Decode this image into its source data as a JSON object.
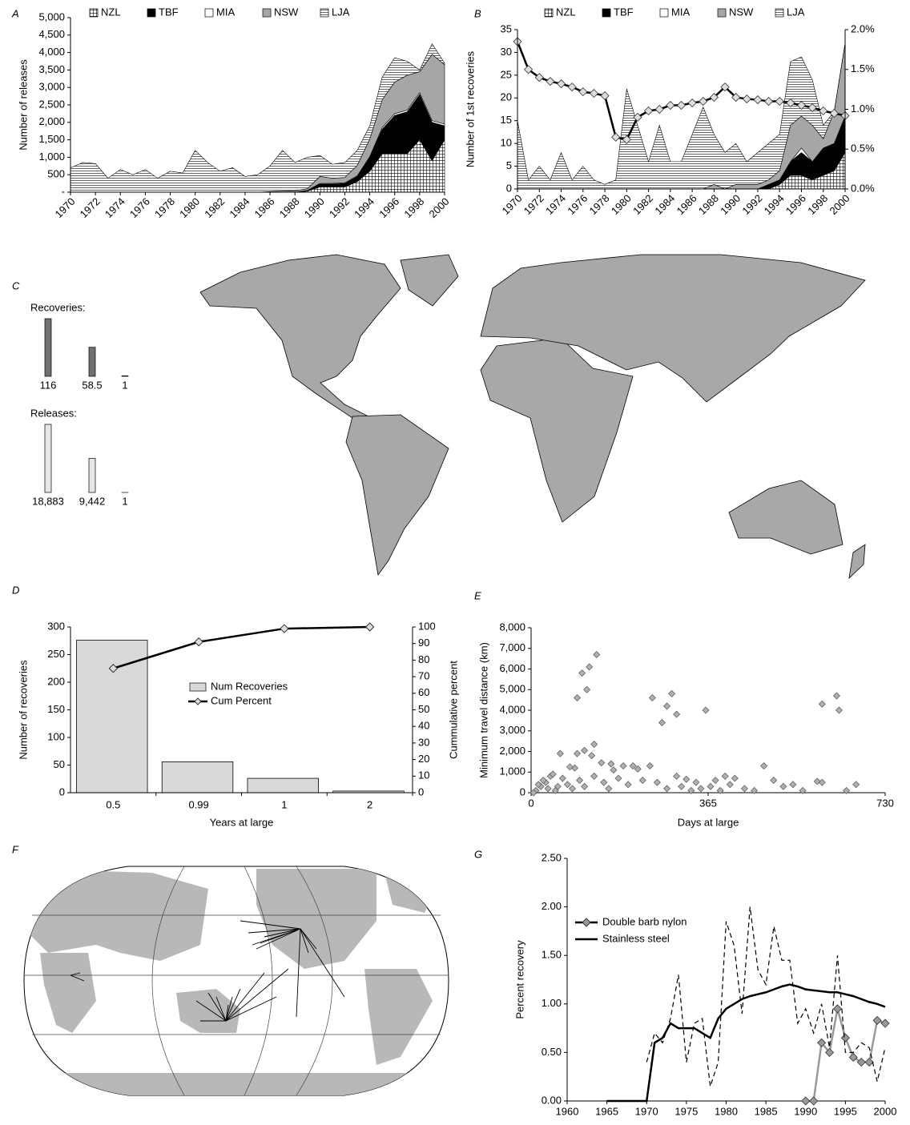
{
  "chart_data": [
    {
      "type": "stacked-area",
      "label": "A",
      "ylabel": "Number of releases",
      "x": [
        1970,
        1971,
        1972,
        1973,
        1974,
        1975,
        1976,
        1977,
        1978,
        1979,
        1980,
        1981,
        1982,
        1983,
        1984,
        1985,
        1986,
        1987,
        1988,
        1989,
        1990,
        1991,
        1992,
        1993,
        1994,
        1995,
        1996,
        1997,
        1998,
        1999,
        2000
      ],
      "xlim": [
        1970,
        2000
      ],
      "xticks": [
        1970,
        1972,
        1974,
        1976,
        1978,
        1980,
        1982,
        1984,
        1986,
        1988,
        1990,
        1992,
        1994,
        1996,
        1998,
        2000
      ],
      "ylim": [
        0,
        5000
      ],
      "yticks": [
        {
          "value": 0,
          "label": "-"
        },
        500,
        {
          "value": 1000,
          "label": "1,000"
        },
        {
          "value": 1500,
          "label": "1,500"
        },
        {
          "value": 2000,
          "label": "2,000"
        },
        {
          "value": 2500,
          "label": "2,500"
        },
        {
          "value": 3000,
          "label": "3,000"
        },
        {
          "value": 3500,
          "label": "3,500"
        },
        {
          "value": 4000,
          "label": "4,000"
        },
        {
          "value": 4500,
          "label": "4,500"
        },
        {
          "value": 5000,
          "label": "5,000"
        }
      ],
      "series": [
        {
          "name": "NZL",
          "color": "#ffffff",
          "pattern": "grid",
          "values": [
            0,
            0,
            0,
            0,
            0,
            0,
            0,
            0,
            0,
            0,
            0,
            0,
            0,
            0,
            0,
            0,
            0,
            0,
            0,
            30,
            150,
            150,
            150,
            300,
            600,
            1100,
            1100,
            1100,
            1500,
            900,
            1500
          ]
        },
        {
          "name": "TBF",
          "color": "#000000",
          "values": [
            0,
            0,
            0,
            0,
            0,
            0,
            0,
            0,
            0,
            0,
            0,
            0,
            0,
            0,
            0,
            0,
            0,
            0,
            0,
            20,
            80,
            80,
            100,
            150,
            400,
            700,
            1100,
            1200,
            1300,
            1100,
            400
          ]
        },
        {
          "name": "MIA",
          "color": "#ffffff",
          "values": [
            0,
            0,
            0,
            0,
            0,
            0,
            0,
            0,
            0,
            0,
            0,
            0,
            0,
            0,
            0,
            0,
            0,
            0,
            0,
            0,
            20,
            20,
            20,
            20,
            20,
            50,
            50,
            50,
            50,
            50,
            50
          ]
        },
        {
          "name": "NSW",
          "color": "#a6a6a6",
          "values": [
            0,
            0,
            0,
            0,
            0,
            0,
            0,
            0,
            0,
            0,
            0,
            0,
            0,
            0,
            0,
            0,
            20,
            30,
            40,
            50,
            200,
            150,
            150,
            300,
            500,
            800,
            900,
            1000,
            600,
            1900,
            1700
          ]
        },
        {
          "name": "LJA",
          "color": "#ffffff",
          "pattern": "hlines",
          "values": [
            700,
            850,
            820,
            400,
            650,
            500,
            650,
            400,
            600,
            550,
            1200,
            850,
            600,
            700,
            450,
            500,
            730,
            1170,
            810,
            900,
            600,
            400,
            430,
            430,
            380,
            650,
            700,
            400,
            50,
            300,
            50
          ]
        }
      ]
    },
    {
      "type": "stacked-area",
      "label": "B",
      "ylabel": "Number of 1st recoveries",
      "x": [
        1970,
        1971,
        1972,
        1973,
        1974,
        1975,
        1976,
        1977,
        1978,
        1979,
        1980,
        1981,
        1982,
        1983,
        1984,
        1985,
        1986,
        1987,
        1988,
        1989,
        1990,
        1991,
        1992,
        1993,
        1994,
        1995,
        1996,
        1997,
        1998,
        1999,
        2000
      ],
      "xlim": [
        1970,
        2000
      ],
      "xticks": [
        1970,
        1972,
        1974,
        1976,
        1978,
        1980,
        1982,
        1984,
        1986,
        1988,
        1990,
        1992,
        1994,
        1996,
        1998,
        2000
      ],
      "ylim": [
        0,
        35
      ],
      "yticks": [
        0,
        5,
        10,
        15,
        20,
        25,
        30,
        35
      ],
      "y2lim": [
        0,
        2
      ],
      "y2ticks": [
        {
          "value": 0,
          "label": "0.0%"
        },
        {
          "value": 0.5,
          "label": "0.5%"
        },
        {
          "value": 1,
          "label": "1.0%"
        },
        {
          "value": 1.5,
          "label": "1.5%"
        },
        {
          "value": 2,
          "label": "2.0%"
        }
      ],
      "series": [
        {
          "name": "NZL",
          "color": "#ffffff",
          "pattern": "grid",
          "values": [
            0,
            0,
            0,
            0,
            0,
            0,
            0,
            0,
            0,
            0,
            0,
            0,
            0,
            0,
            0,
            0,
            0,
            0,
            0,
            0,
            0,
            0,
            0,
            0,
            1,
            3,
            3,
            2,
            3,
            4,
            8
          ]
        },
        {
          "name": "TBF",
          "color": "#000000",
          "values": [
            0,
            0,
            0,
            0,
            0,
            0,
            0,
            0,
            0,
            0,
            0,
            0,
            0,
            0,
            0,
            0,
            0,
            0,
            0,
            0,
            0,
            0,
            0,
            1,
            1,
            3,
            5,
            4,
            6,
            6,
            8
          ]
        },
        {
          "name": "MIA",
          "color": "#ffffff",
          "values": [
            0,
            0,
            0,
            0,
            0,
            0,
            0,
            0,
            0,
            0,
            0,
            0,
            0,
            0,
            0,
            0,
            0,
            0,
            0,
            0,
            0,
            0,
            0,
            0,
            0,
            0,
            1,
            0,
            0,
            0,
            0
          ]
        },
        {
          "name": "NSW",
          "color": "#a6a6a6",
          "values": [
            0,
            0,
            0,
            0,
            0,
            0,
            0,
            0,
            0,
            0,
            0,
            0,
            0,
            0,
            0,
            0,
            0,
            0,
            1,
            0,
            1,
            1,
            1,
            1,
            2,
            8,
            7,
            8,
            2,
            7,
            16
          ]
        },
        {
          "name": "LJA",
          "color": "#ffffff",
          "pattern": "hlines",
          "values": [
            15,
            2,
            5,
            2,
            8,
            2,
            5,
            2,
            1,
            2,
            22,
            14,
            6,
            14,
            6,
            6,
            12,
            18,
            11,
            8,
            9,
            5,
            7,
            8,
            8,
            14,
            13,
            10,
            3,
            0,
            0
          ]
        },
        {
          "color": "#000000",
          "axis": "y2",
          "marker": "diamond",
          "values": [
            1.85,
            1.5,
            1.4,
            1.35,
            1.32,
            1.28,
            1.22,
            1.2,
            1.17,
            0.65,
            0.62,
            0.9,
            0.98,
            1.0,
            1.05,
            1.05,
            1.08,
            1.1,
            1.15,
            1.28,
            1.15,
            1.13,
            1.12,
            1.1,
            1.1,
            1.08,
            1.05,
            1.02,
            0.98,
            0.95,
            0.92
          ]
        }
      ]
    },
    {
      "type": "map",
      "label": "C",
      "legend": [
        {
          "title": "Recoveries:",
          "color": "#707070",
          "values": [
            116,
            58.5,
            1
          ]
        },
        {
          "title": "Releases:",
          "color": "#e6e6e6",
          "values": [
            18883,
            9442,
            1
          ],
          "value_labels": [
            "18,883",
            "9,442",
            "1"
          ]
        }
      ]
    },
    {
      "type": "bar",
      "label": "D",
      "xlabel": "Years at large",
      "ylabel": "Number of recoveries",
      "y2label": "Cummulative percent",
      "categories": [
        "0.5",
        "0.99",
        "1",
        "2"
      ],
      "ylim": [
        0,
        300
      ],
      "yticks": [
        0,
        50,
        100,
        150,
        200,
        250,
        300
      ],
      "y2lim": [
        0,
        100
      ],
      "y2ticks": [
        0,
        10,
        20,
        30,
        40,
        50,
        60,
        70,
        80,
        90,
        100
      ],
      "series": [
        {
          "name": "Num Recoveries",
          "color": "#d9d9d9",
          "values": [
            276,
            56,
            26,
            3
          ]
        },
        {
          "name": "Cum Percent",
          "color": "#000000",
          "axis": "y2",
          "mark": "line",
          "marker": "diamond",
          "values": [
            75,
            91,
            99,
            100
          ]
        }
      ]
    },
    {
      "type": "scatter",
      "label": "E",
      "xlabel": "Days at large",
      "ylabel": "Minimum travel distance (km)",
      "xlim": [
        0,
        730
      ],
      "xticks": [
        0,
        365,
        730
      ],
      "ylim": [
        0,
        8000
      ],
      "yticks": [
        0,
        {
          "value": 1000,
          "label": "1,000"
        },
        {
          "value": 2000,
          "label": "2,000"
        },
        {
          "value": 3000,
          "label": "3,000"
        },
        {
          "value": 4000,
          "label": "4,000"
        },
        {
          "value": 5000,
          "label": "5,000"
        },
        {
          "value": 6000,
          "label": "6,000"
        },
        {
          "value": 7000,
          "label": "7,000"
        },
        {
          "value": 8000,
          "label": "8,000"
        }
      ],
      "color": "#b0b0b0",
      "x": [
        95,
        105,
        120,
        115,
        135,
        250,
        270,
        290,
        300,
        280,
        360,
        600,
        630,
        635,
        95,
        110,
        125,
        130,
        90,
        80,
        60,
        145,
        165,
        170,
        190,
        210,
        220,
        245,
        300,
        320,
        340,
        380,
        400,
        420,
        440,
        460,
        480,
        500,
        520,
        540,
        560,
        590,
        600,
        650,
        670,
        20,
        30,
        40,
        50,
        10,
        5,
        15,
        25,
        35,
        45,
        55,
        65,
        75,
        85,
        100,
        110,
        130,
        150,
        160,
        180,
        200,
        230,
        260,
        280,
        310,
        330,
        350,
        370,
        390,
        410
      ],
      "values": [
        4600,
        5800,
        6100,
        5000,
        6700,
        4600,
        3400,
        4800,
        3800,
        4200,
        4000,
        4300,
        4700,
        4000,
        1900,
        2050,
        1800,
        2350,
        1200,
        1250,
        1900,
        1450,
        1400,
        1100,
        1300,
        1300,
        1150,
        1300,
        800,
        650,
        500,
        600,
        800,
        700,
        200,
        100,
        1300,
        600,
        300,
        400,
        100,
        550,
        500,
        100,
        400,
        300,
        500,
        800,
        100,
        100,
        0,
        400,
        600,
        200,
        900,
        300,
        700,
        400,
        200,
        600,
        300,
        800,
        500,
        200,
        700,
        400,
        600,
        500,
        200,
        300,
        100,
        200,
        300,
        100,
        400
      ]
    },
    {
      "type": "map",
      "label": "F"
    },
    {
      "type": "line",
      "label": "G",
      "ylabel": "Percent recovery",
      "legend": "upper left",
      "xlim": [
        1960,
        2000
      ],
      "xticks": [
        1960,
        1965,
        1970,
        1975,
        1980,
        1985,
        1990,
        1995,
        2000
      ],
      "ylim": [
        0,
        2.5
      ],
      "yticks": [
        {
          "value": 0,
          "label": "0.00"
        },
        {
          "value": 0.5,
          "label": "0.50"
        },
        {
          "value": 1,
          "label": "1.00"
        },
        {
          "value": 1.5,
          "label": "1.50"
        },
        {
          "value": 2,
          "label": "2.00"
        },
        {
          "value": 2.5,
          "label": "2.50"
        }
      ],
      "series": [
        {
          "name": "Double barb nylon",
          "color": "#999999",
          "marker": "diamond",
          "x": [
            1990,
            1991,
            1992,
            1993,
            1994,
            1995,
            1996,
            1997,
            1998,
            1999,
            2000
          ],
          "values": [
            0,
            0,
            0.6,
            0.5,
            0.95,
            0.65,
            0.45,
            0.4,
            0.4,
            0.83,
            0.8
          ]
        },
        {
          "name": "Stainless steel",
          "color": "#000000",
          "x": [
            1965,
            1966,
            1967,
            1968,
            1969,
            1970,
            1971,
            1972,
            1973,
            1974,
            1975,
            1976,
            1977,
            1978,
            1979,
            1980,
            1981,
            1982,
            1983,
            1984,
            1985,
            1986,
            1987,
            1988,
            1989,
            1990,
            1991,
            1992,
            1993,
            1994,
            1995,
            1996,
            1997,
            1998,
            1999,
            2000
          ],
          "values": [
            0,
            0,
            0,
            0,
            0,
            0,
            0.6,
            0.65,
            0.8,
            0.75,
            0.75,
            0.75,
            0.7,
            0.65,
            0.85,
            0.95,
            1.0,
            1.05,
            1.08,
            1.1,
            1.12,
            1.15,
            1.18,
            1.2,
            1.18,
            1.15,
            1.14,
            1.13,
            1.12,
            1.12,
            1.1,
            1.08,
            1.05,
            1.02,
            1.0,
            0.97
          ]
        },
        {
          "color": "#000000",
          "dash": true,
          "x": [
            1970,
            1971,
            1972,
            1973,
            1974,
            1975,
            1976,
            1977,
            1978,
            1979,
            1980,
            1981,
            1982,
            1983,
            1984,
            1985,
            1986,
            1987,
            1988,
            1989,
            1990,
            1991,
            1992,
            1993,
            1994,
            1995,
            1996,
            1997,
            1998,
            1999,
            2000
          ],
          "values": [
            0.4,
            0.7,
            0.6,
            0.85,
            1.3,
            0.4,
            0.8,
            0.85,
            0.15,
            0.4,
            1.85,
            1.6,
            0.9,
            2.0,
            1.35,
            1.2,
            1.8,
            1.45,
            1.45,
            0.8,
            0.95,
            0.7,
            1.0,
            0.55,
            1.5,
            0.5,
            0.5,
            0.6,
            0.55,
            0.2,
            0.55
          ]
        }
      ]
    }
  ]
}
